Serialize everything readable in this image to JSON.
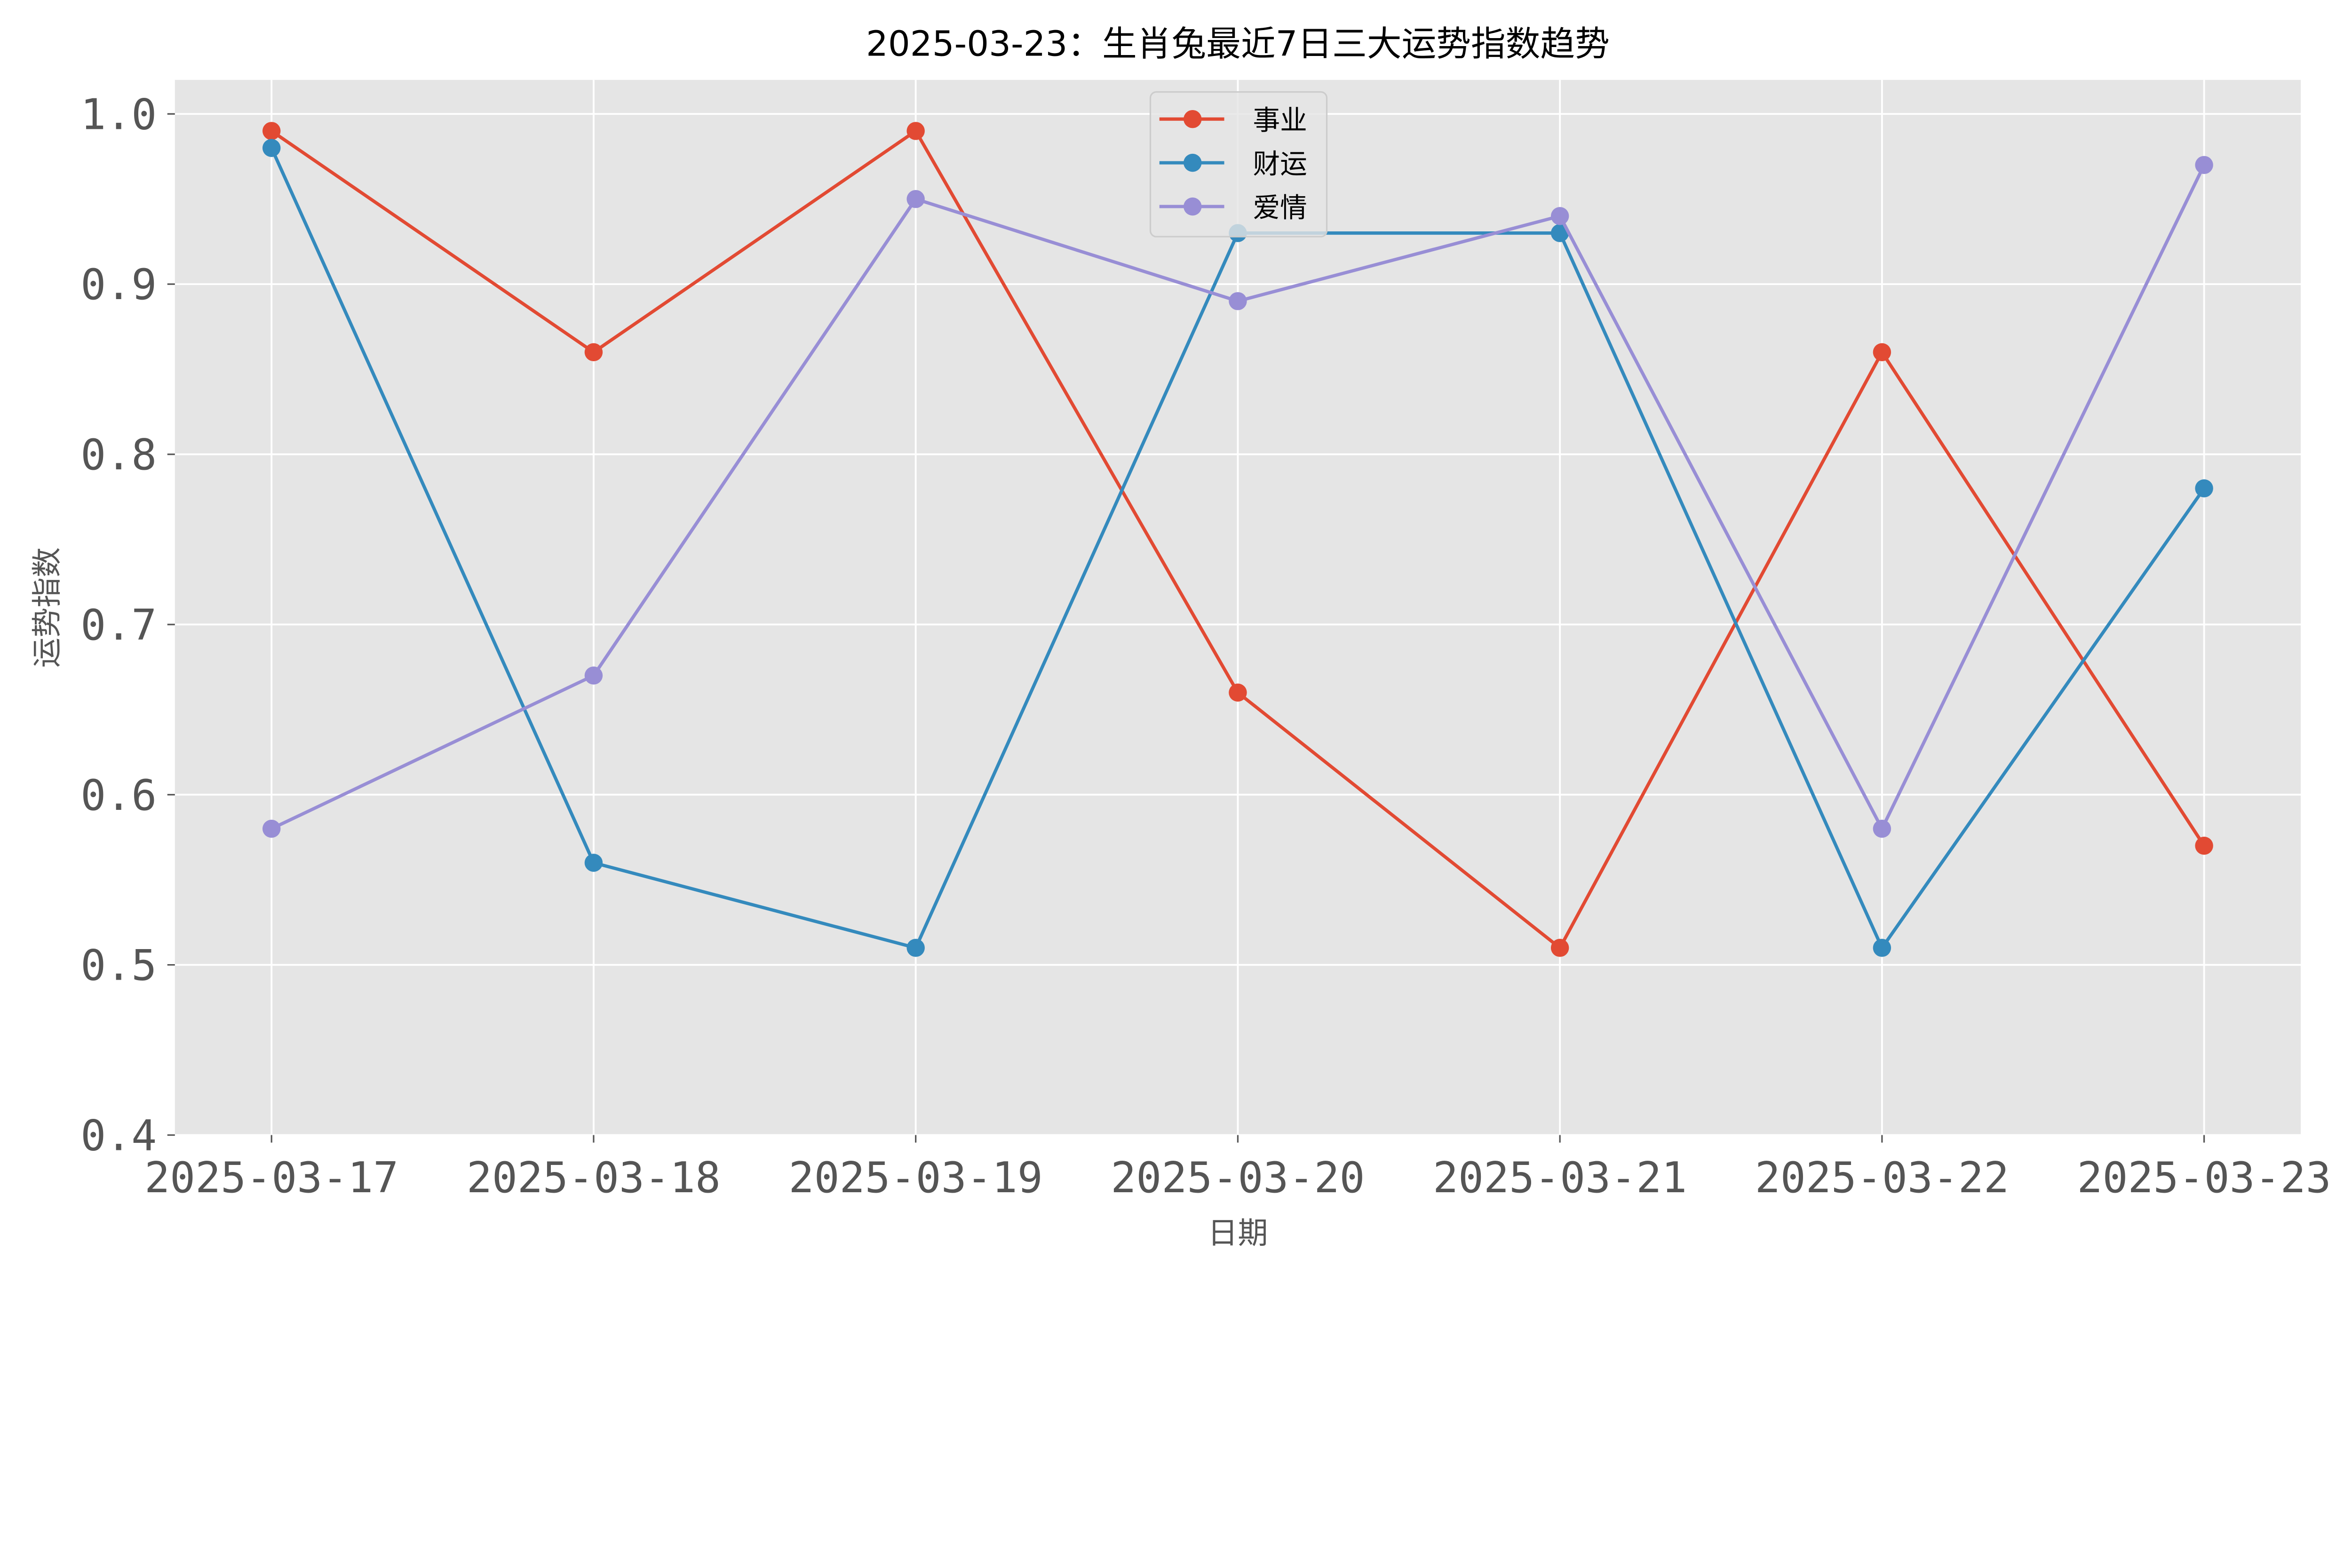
{
  "chart_data": {
    "type": "line",
    "title": "2025-03-23：生肖兔最近7日三大运势指数趋势",
    "xlabel": "日期",
    "ylabel": "运势指数",
    "categories": [
      "2025-03-17",
      "2025-03-18",
      "2025-03-19",
      "2025-03-20",
      "2025-03-21",
      "2025-03-22",
      "2025-03-23"
    ],
    "yticks": [
      "0.4",
      "0.5",
      "0.6",
      "0.7",
      "0.8",
      "0.9",
      "1.0"
    ],
    "ylim": [
      0.4,
      1.02
    ],
    "grid": true,
    "legend_position": "top-center",
    "background": "#e5e5e5",
    "series": [
      {
        "name": "事业",
        "color": "#e24a33",
        "values": [
          0.99,
          0.86,
          0.99,
          0.66,
          0.51,
          0.86,
          0.57
        ]
      },
      {
        "name": "财运",
        "color": "#348abd",
        "values": [
          0.98,
          0.56,
          0.51,
          0.93,
          0.93,
          0.51,
          0.78
        ]
      },
      {
        "name": "爱情",
        "color": "#988ed5",
        "values": [
          0.58,
          0.67,
          0.95,
          0.89,
          0.94,
          0.58,
          0.97
        ]
      }
    ]
  }
}
